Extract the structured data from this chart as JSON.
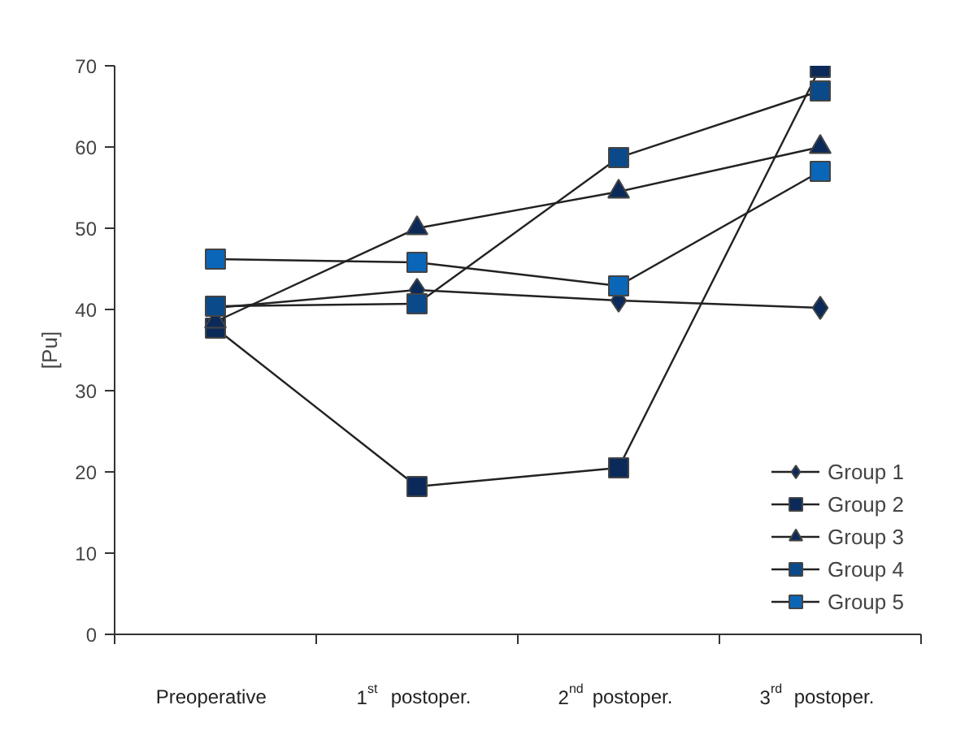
{
  "chart_data": {
    "type": "line",
    "ylabel": "[Pu]",
    "categories": [
      "Preoperative",
      "1$^{st}$ postoper.",
      "2$^{nd}$ postoper.",
      "3$^{rd}$ postoper."
    ],
    "ylim": [
      0,
      70
    ],
    "yticks": [
      0,
      10,
      20,
      30,
      40,
      50,
      60,
      70
    ],
    "grid": false,
    "legend": "bottom right",
    "line_style": "solid",
    "series": [
      {
        "name": "Group 1",
        "color": "#0b2a5a",
        "marker": "diamond",
        "values": [
          40.2,
          42.4,
          41.1,
          40.2
        ]
      },
      {
        "name": "Group 2",
        "color": "#0b2a5a",
        "marker": "square",
        "values": [
          37.7,
          18.2,
          20.5,
          69.8
        ]
      },
      {
        "name": "Group 3",
        "color": "#0b2a5a",
        "marker": "triangle",
        "values": [
          38.5,
          50,
          54.5,
          60
        ]
      },
      {
        "name": "Group 4",
        "color": "#0a4a8a",
        "marker": "square",
        "values": [
          40.4,
          40.7,
          58.7,
          66.9
        ]
      },
      {
        "name": "Group 5",
        "color": "#0a66b8",
        "marker": "square",
        "values": [
          46.2,
          45.8,
          42.9,
          57
        ]
      }
    ]
  }
}
